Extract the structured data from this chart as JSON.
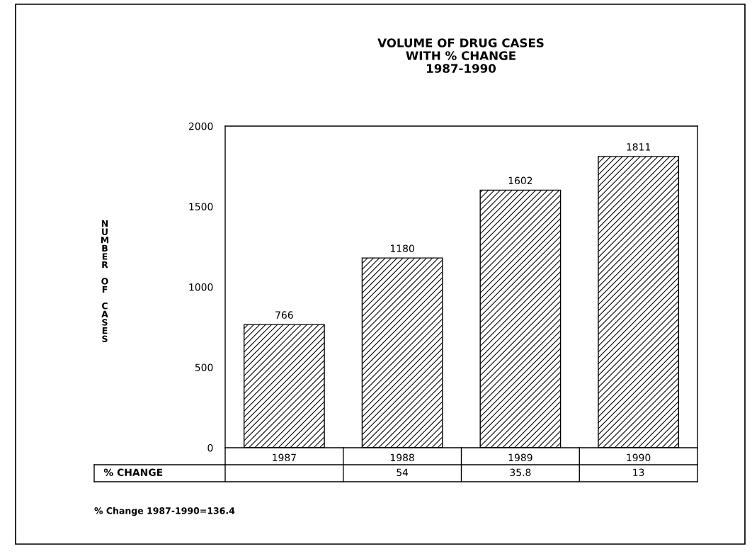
{
  "chart_data": {
    "type": "bar",
    "title": "VOLUME OF DRUG CASES\nWITH % CHANGE\n1987-1990",
    "ylabel": "NUMBER OF CASES",
    "categories": [
      "1987",
      "1988",
      "1989",
      "1990"
    ],
    "values": [
      766,
      1180,
      1602,
      1811
    ],
    "color": "#000000",
    "data_labels": true,
    "ylim": [
      0,
      2000
    ],
    "yticks": [
      0,
      500,
      1000,
      1500,
      2000
    ],
    "grid": false,
    "annotations": [
      "% CHANGE",
      "54",
      "35.8",
      "13",
      "% Change 1987-1990=136.4"
    ]
  }
}
